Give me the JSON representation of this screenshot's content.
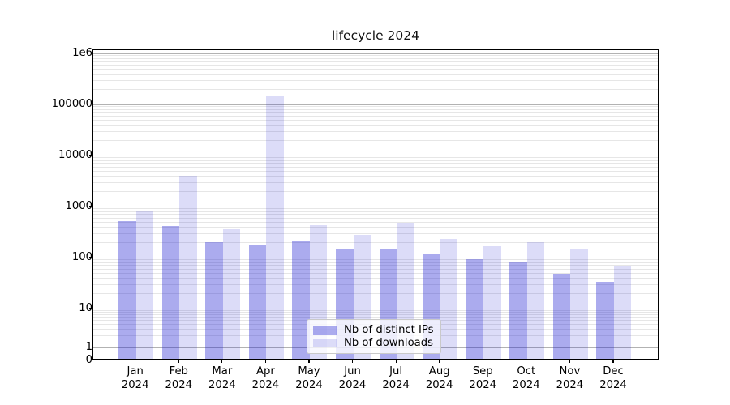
{
  "title": "lifecycle 2024",
  "colors": {
    "bar_base": "#1515d0",
    "ips_alpha": 0.36,
    "downloads_alpha": 0.15,
    "ips_hex": "#abacf1",
    "downloads_hex": "#dcdcf7",
    "grid_major": "#b2b2b2",
    "grid_minor": "#e6e6e6",
    "axis": "#000000"
  },
  "chart_data": {
    "type": "bar",
    "title": "lifecycle 2024",
    "xlabel": "",
    "ylabel": "",
    "yscale": "symlog",
    "ylim": [
      0,
      1150000
    ],
    "grid": "on",
    "legend_position": "lower center",
    "year": "2024",
    "categories": [
      "Jan",
      "Feb",
      "Mar",
      "Apr",
      "May",
      "Jun",
      "Jul",
      "Aug",
      "Sep",
      "Oct",
      "Nov",
      "Dec"
    ],
    "y_ticks": [
      {
        "label": "1e6",
        "value": 1000000
      },
      {
        "label": "100000",
        "value": 100000
      },
      {
        "label": "10000",
        "value": 10000
      },
      {
        "label": "1000",
        "value": 1000
      },
      {
        "label": "100",
        "value": 100
      },
      {
        "label": "10",
        "value": 10
      },
      {
        "label": "1",
        "value": 1
      },
      {
        "label": "0",
        "value": 0
      }
    ],
    "series": [
      {
        "name": "Nb of distinct IPs",
        "values": [
          505,
          410,
          200,
          180,
          205,
          150,
          150,
          120,
          93,
          83,
          48,
          33
        ]
      },
      {
        "name": "Nb of downloads",
        "values": [
          780,
          3900,
          350,
          145000,
          420,
          275,
          475,
          230,
          162,
          195,
          140,
          69
        ]
      }
    ]
  }
}
